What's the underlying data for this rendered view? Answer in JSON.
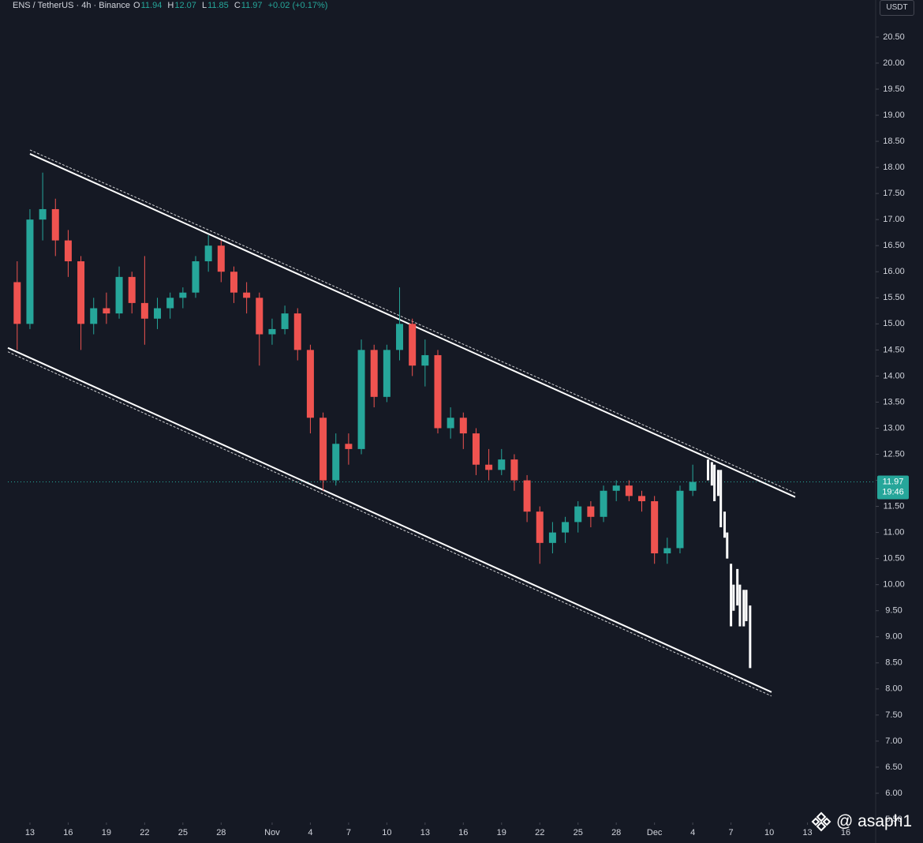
{
  "chart_data": {
    "type": "candlestick",
    "title": "ENS / TetherUS · 4h · Binance",
    "ohlc_labels": [
      "O",
      "H",
      "L",
      "C"
    ],
    "ohlc_values": [
      11.94,
      12.07,
      11.85,
      11.97
    ],
    "change": "+0.02 (+0.17%)",
    "currency": "USDT",
    "last_price": 11.97,
    "countdown": "19:46",
    "watermark": "@ asaph1",
    "up_color": "#26a69a",
    "down_color": "#ef5350",
    "x": [
      -1,
      0,
      1,
      2,
      3,
      4,
      5,
      6,
      7,
      8,
      9,
      10,
      11,
      12,
      13,
      14,
      15,
      16,
      17,
      18,
      19,
      20,
      21,
      22,
      23,
      24,
      25,
      26,
      27,
      28,
      29,
      30,
      31,
      32,
      33,
      34,
      35,
      36,
      37,
      38,
      39,
      40,
      41,
      42,
      43,
      44,
      45,
      46,
      47,
      48,
      49,
      50,
      51,
      52
    ],
    "open": [
      15.8,
      15.0,
      17.0,
      17.2,
      16.6,
      16.2,
      15.0,
      15.3,
      15.2,
      15.9,
      15.4,
      15.1,
      15.3,
      15.5,
      15.6,
      16.2,
      16.5,
      16.0,
      15.6,
      15.5,
      14.8,
      14.9,
      15.2,
      14.5,
      13.2,
      12.0,
      12.7,
      12.6,
      14.5,
      13.6,
      14.5,
      15.0,
      14.2,
      14.4,
      13.0,
      13.2,
      12.9,
      12.3,
      12.2,
      12.4,
      12.0,
      11.4,
      10.8,
      11.0,
      11.2,
      11.5,
      11.3,
      11.8,
      11.9,
      11.7,
      11.6,
      10.6,
      10.7,
      11.8
    ],
    "high": [
      16.2,
      17.2,
      17.9,
      17.4,
      16.8,
      16.3,
      15.5,
      15.6,
      16.1,
      16.0,
      16.3,
      15.5,
      15.6,
      15.7,
      16.3,
      16.7,
      16.6,
      16.1,
      15.8,
      15.6,
      15.1,
      15.35,
      15.3,
      14.6,
      13.3,
      12.9,
      12.9,
      14.7,
      14.6,
      14.6,
      15.7,
      15.1,
      14.7,
      14.5,
      13.4,
      13.3,
      13.0,
      12.6,
      12.6,
      12.5,
      12.1,
      11.5,
      11.2,
      11.3,
      11.6,
      11.6,
      11.9,
      12.0,
      12.0,
      11.8,
      11.7,
      10.9,
      11.9,
      12.3
    ],
    "low": [
      14.5,
      14.9,
      16.6,
      16.3,
      15.9,
      14.5,
      14.8,
      15.0,
      15.1,
      15.2,
      14.6,
      14.9,
      15.1,
      15.3,
      15.5,
      16.0,
      15.8,
      15.4,
      15.2,
      14.2,
      14.6,
      14.8,
      14.3,
      12.9,
      11.8,
      11.9,
      12.3,
      12.5,
      13.4,
      13.5,
      14.3,
      14.0,
      13.8,
      12.9,
      12.8,
      12.6,
      12.1,
      12.0,
      12.1,
      11.8,
      11.2,
      10.4,
      10.6,
      10.8,
      11.0,
      11.1,
      11.2,
      11.6,
      11.6,
      11.4,
      10.4,
      10.4,
      10.6,
      11.7
    ],
    "close": [
      15.0,
      17.0,
      17.2,
      16.6,
      16.2,
      15.0,
      15.3,
      15.2,
      15.9,
      15.4,
      15.1,
      15.3,
      15.5,
      15.6,
      16.2,
      16.5,
      16.0,
      15.6,
      15.5,
      14.8,
      14.9,
      15.2,
      14.5,
      13.2,
      12.0,
      12.7,
      12.6,
      14.5,
      13.6,
      14.5,
      15.0,
      14.2,
      14.4,
      13.0,
      13.2,
      12.9,
      12.3,
      12.2,
      12.4,
      12.0,
      11.4,
      10.8,
      11.0,
      11.2,
      11.5,
      11.3,
      11.8,
      11.9,
      11.7,
      11.6,
      10.6,
      10.7,
      11.8,
      11.97
    ],
    "projection": {
      "color": "#ffffff",
      "x": [
        53.2,
        53.5,
        53.7,
        54.0,
        54.2,
        54.5,
        54.7,
        55.0,
        55.2,
        55.5,
        55.7,
        56.0,
        56.2,
        56.5
      ],
      "high": [
        12.4,
        12.35,
        12.3,
        12.2,
        12.2,
        11.4,
        11.0,
        10.4,
        10.0,
        10.3,
        10.0,
        9.9,
        9.9,
        9.6
      ],
      "low": [
        12.0,
        11.9,
        11.6,
        11.7,
        11.1,
        10.9,
        10.5,
        9.2,
        9.5,
        9.6,
        9.2,
        9.2,
        9.3,
        8.4
      ]
    },
    "channels": [
      {
        "color": "#ffffff",
        "x": [
          0,
          60.04
        ],
        "y": [
          18.26,
          11.68
        ]
      },
      {
        "color": "#ffffff",
        "x": [
          -1.73,
          58.18
        ],
        "y": [
          14.54,
          7.94
        ]
      }
    ],
    "xlim": [
      -1.73,
      66.35
    ],
    "ylim": [
      5.47,
      21.21
    ],
    "xticks": [
      {
        "value": 0,
        "label": "13"
      },
      {
        "value": 3,
        "label": "16"
      },
      {
        "value": 6,
        "label": "19"
      },
      {
        "value": 9,
        "label": "22"
      },
      {
        "value": 12,
        "label": "25"
      },
      {
        "value": 15,
        "label": "28"
      },
      {
        "value": 19,
        "label": "Nov"
      },
      {
        "value": 22,
        "label": "4"
      },
      {
        "value": 25,
        "label": "7"
      },
      {
        "value": 28,
        "label": "10"
      },
      {
        "value": 31,
        "label": "13"
      },
      {
        "value": 34,
        "label": "16"
      },
      {
        "value": 37,
        "label": "19"
      },
      {
        "value": 40,
        "label": "22"
      },
      {
        "value": 43,
        "label": "25"
      },
      {
        "value": 46,
        "label": "28"
      },
      {
        "value": 49,
        "label": "Dec"
      },
      {
        "value": 52,
        "label": "4"
      },
      {
        "value": 55,
        "label": "7"
      },
      {
        "value": 58,
        "label": "10"
      },
      {
        "value": 61,
        "label": "13"
      },
      {
        "value": 64,
        "label": "16"
      }
    ],
    "yticks": [
      {
        "value": 20.5,
        "label": "20.50"
      },
      {
        "value": 20,
        "label": "20.00"
      },
      {
        "value": 19.5,
        "label": "19.50"
      },
      {
        "value": 19,
        "label": "19.00"
      },
      {
        "value": 18.5,
        "label": "18.50"
      },
      {
        "value": 18,
        "label": "18.00"
      },
      {
        "value": 17.5,
        "label": "17.50"
      },
      {
        "value": 17,
        "label": "17.00"
      },
      {
        "value": 16.5,
        "label": "16.50"
      },
      {
        "value": 16,
        "label": "16.00"
      },
      {
        "value": 15.5,
        "label": "15.50"
      },
      {
        "value": 15,
        "label": "15.00"
      },
      {
        "value": 14.5,
        "label": "14.50"
      },
      {
        "value": 14,
        "label": "14.00"
      },
      {
        "value": 13.5,
        "label": "13.50"
      },
      {
        "value": 13,
        "label": "13.00"
      },
      {
        "value": 12.5,
        "label": "12.50"
      },
      {
        "value": 12,
        "label": "12.00"
      },
      {
        "value": 11.5,
        "label": "11.50"
      },
      {
        "value": 11,
        "label": "11.00"
      },
      {
        "value": 10.5,
        "label": "10.50"
      },
      {
        "value": 10,
        "label": "10.00"
      },
      {
        "value": 9.5,
        "label": "9.50"
      },
      {
        "value": 9,
        "label": "9.00"
      },
      {
        "value": 8.5,
        "label": "8.50"
      },
      {
        "value": 8,
        "label": "8.00"
      },
      {
        "value": 7.5,
        "label": "7.50"
      },
      {
        "value": 7,
        "label": "7.00"
      },
      {
        "value": 6.5,
        "label": "6.50"
      },
      {
        "value": 6,
        "label": "6.00"
      },
      {
        "value": 5.5,
        "label": "5.50"
      }
    ]
  }
}
